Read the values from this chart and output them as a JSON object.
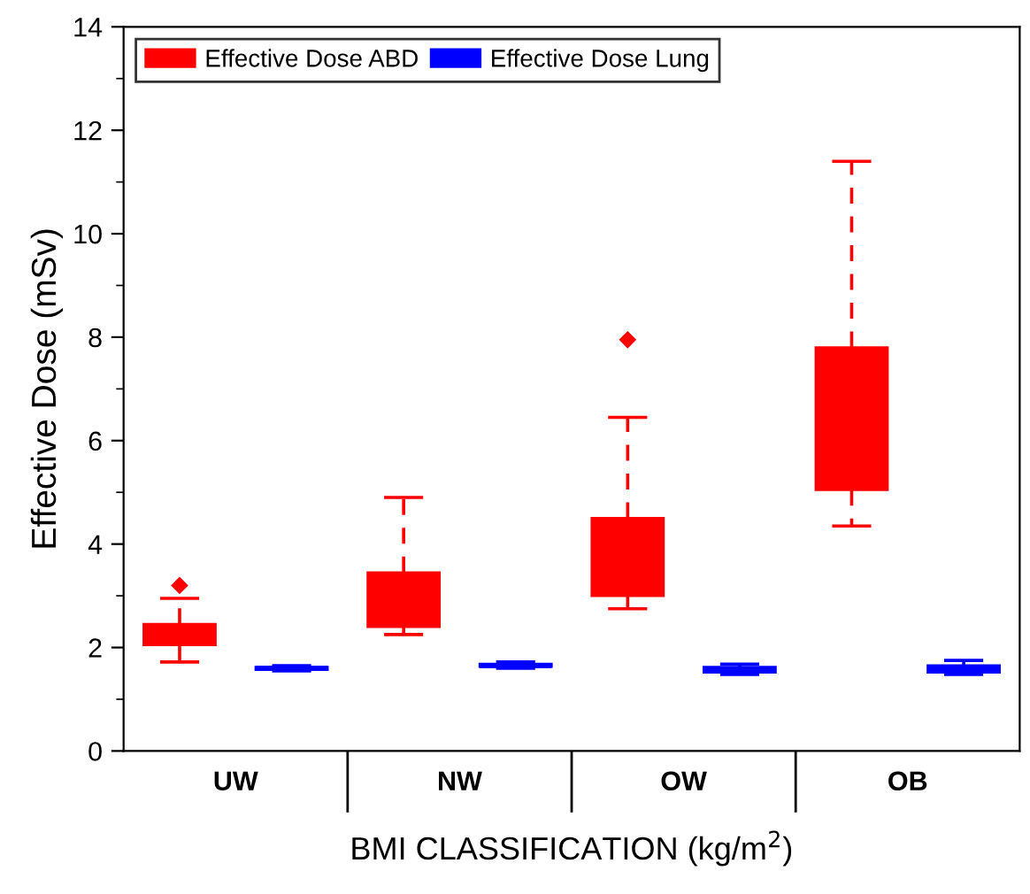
{
  "chart_data": {
    "type": "box",
    "xlabel": "BMI CLASSIFICATION (kg/m$^{2}$)",
    "ylabel": "Effective Dose (mSv)",
    "categories": [
      "UW",
      "NW",
      "OW",
      "OB"
    ],
    "ylim": [
      0,
      14
    ],
    "yticks": [
      0,
      2,
      4,
      6,
      8,
      10,
      12,
      14
    ],
    "grid": false,
    "legend": "top left",
    "series": [
      {
        "name": "Effective Dose ABD",
        "color": "#ff0000",
        "boxes": [
          {
            "low": 1.72,
            "q1": 2.05,
            "median": 2.3,
            "q3": 2.45,
            "high": 2.95,
            "outliers": [
              3.2
            ]
          },
          {
            "low": 2.25,
            "q1": 2.4,
            "median": 2.8,
            "q3": 3.45,
            "high": 4.9
          },
          {
            "low": 2.75,
            "q1": 3.0,
            "median": 3.9,
            "q3": 4.5,
            "high": 6.45,
            "outliers": [
              7.95
            ]
          },
          {
            "low": 4.35,
            "q1": 5.05,
            "median": 6.5,
            "q3": 7.8,
            "high": 11.4
          }
        ]
      },
      {
        "name": "Effective Dose Lung",
        "color": "#0000ff",
        "boxes": [
          {
            "low": 1.55,
            "q1": 1.57,
            "median": 1.6,
            "q3": 1.62,
            "high": 1.65
          },
          {
            "low": 1.6,
            "q1": 1.63,
            "median": 1.65,
            "q3": 1.68,
            "high": 1.72
          },
          {
            "low": 1.48,
            "q1": 1.52,
            "median": 1.57,
            "q3": 1.62,
            "high": 1.68
          },
          {
            "low": 1.48,
            "q1": 1.52,
            "median": 1.57,
            "q3": 1.65,
            "high": 1.75
          }
        ]
      }
    ]
  }
}
